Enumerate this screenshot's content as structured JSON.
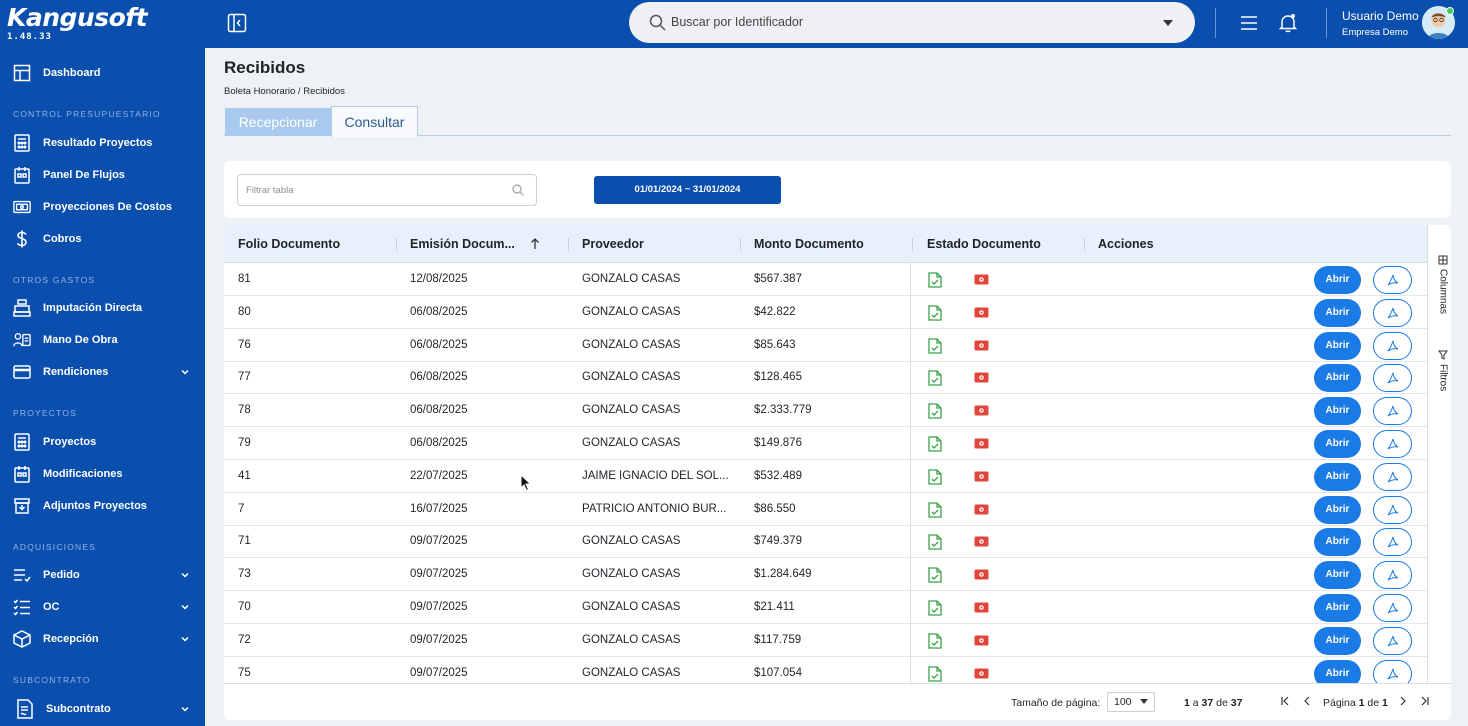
{
  "brand": {
    "name": "Kangusoft",
    "version": "1.48.33"
  },
  "sidebar": {
    "items": [
      {
        "label": "Dashboard"
      },
      {
        "section": "CONTROL PRESUPUESTARIO"
      },
      {
        "label": "Resultado Proyectos"
      },
      {
        "label": "Panel De Flujos"
      },
      {
        "label": "Proyecciones De Costos"
      },
      {
        "label": "Cobros"
      },
      {
        "section": "OTROS GASTOS"
      },
      {
        "label": "Imputación Directa"
      },
      {
        "label": "Mano De Obra"
      },
      {
        "label": "Rendiciones"
      },
      {
        "section": "PROYECTOS"
      },
      {
        "label": "Proyectos"
      },
      {
        "label": "Modificaciones"
      },
      {
        "label": "Adjuntos Proyectos"
      },
      {
        "section": "ADQUISICIONES"
      },
      {
        "label": "Pedido"
      },
      {
        "label": "OC"
      },
      {
        "label": "Recepción"
      },
      {
        "section": "SUBCONTRATO"
      },
      {
        "label": "Subcontrato"
      }
    ]
  },
  "header": {
    "search_placeholder": "Buscar por Identificador",
    "user_name": "Usuario Demo",
    "company": "Empresa Demo"
  },
  "page": {
    "title": "Recibidos",
    "breadcrumb": "Boleta Honorario / Recibidos",
    "tabs": [
      {
        "label": "Recepcionar"
      },
      {
        "label": "Consultar"
      }
    ]
  },
  "filter": {
    "placeholder": "Filtrar tabla",
    "date_range": "01/01/2024 ~ 31/01/2024"
  },
  "grid": {
    "columns": [
      "Folio Documento",
      "Emisión Docum...",
      "Proveedor",
      "Monto Documento",
      "Estado Documento",
      "Acciones"
    ],
    "open_label": "Abrir",
    "side_panel": {
      "columns_label": "Columnas",
      "filters_label": "Filtros"
    },
    "rows": [
      {
        "folio": "81",
        "emision": "12/08/2025",
        "proveedor": "GONZALO CASAS",
        "monto": "$567.387"
      },
      {
        "folio": "80",
        "emision": "06/08/2025",
        "proveedor": "GONZALO CASAS",
        "monto": "$42.822"
      },
      {
        "folio": "76",
        "emision": "06/08/2025",
        "proveedor": "GONZALO CASAS",
        "monto": "$85.643"
      },
      {
        "folio": "77",
        "emision": "06/08/2025",
        "proveedor": "GONZALO CASAS",
        "monto": "$128.465"
      },
      {
        "folio": "78",
        "emision": "06/08/2025",
        "proveedor": "GONZALO CASAS",
        "monto": "$2.333.779"
      },
      {
        "folio": "79",
        "emision": "06/08/2025",
        "proveedor": "GONZALO CASAS",
        "monto": "$149.876"
      },
      {
        "folio": "41",
        "emision": "22/07/2025",
        "proveedor": "JAIME IGNACIO DEL SOL...",
        "monto": "$532.489"
      },
      {
        "folio": "7",
        "emision": "16/07/2025",
        "proveedor": "PATRICIO ANTONIO BUR...",
        "monto": "$86.550"
      },
      {
        "folio": "71",
        "emision": "09/07/2025",
        "proveedor": "GONZALO CASAS",
        "monto": "$749.379"
      },
      {
        "folio": "73",
        "emision": "09/07/2025",
        "proveedor": "GONZALO CASAS",
        "monto": "$1.284.649"
      },
      {
        "folio": "70",
        "emision": "09/07/2025",
        "proveedor": "GONZALO CASAS",
        "monto": "$21.411"
      },
      {
        "folio": "72",
        "emision": "09/07/2025",
        "proveedor": "GONZALO CASAS",
        "monto": "$117.759"
      },
      {
        "folio": "75",
        "emision": "09/07/2025",
        "proveedor": "GONZALO CASAS",
        "monto": "$107.054"
      }
    ]
  },
  "pagination": {
    "page_size_label": "Tamaño de página:",
    "page_size": "100",
    "range_from": "1",
    "range_to": "37",
    "total": "37",
    "range_a": "a",
    "range_de": "de",
    "page_label": "Página",
    "page_current": "1",
    "page_de": "de",
    "page_total": "1"
  },
  "colors": {
    "brand_blue": "#0b4fae",
    "button_blue": "#1a7ae6",
    "ok_green": "#3aa04a",
    "error_red": "#e0463b"
  }
}
